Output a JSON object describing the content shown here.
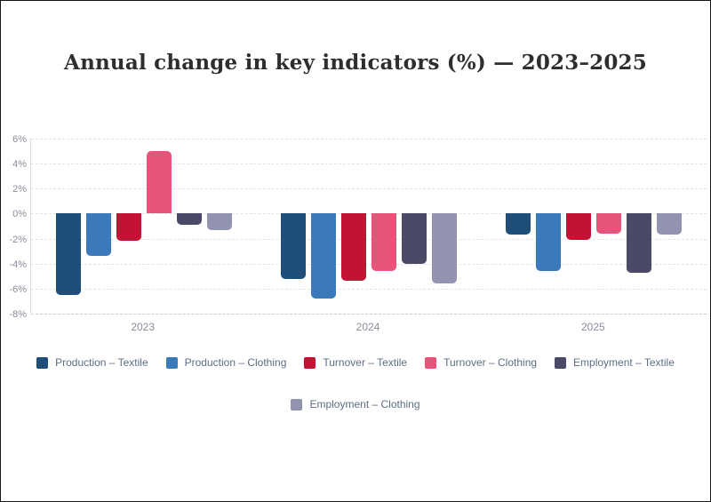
{
  "page": {
    "title": "Annual change in key indicators (%) — 2023–2025"
  },
  "chart_data": {
    "type": "bar",
    "title": "Annual change in key indicators (%) — 2023–2025",
    "categories": [
      "2023",
      "2024",
      "2025"
    ],
    "series": [
      {
        "name": "Production – Textile",
        "color": "#1f4e79",
        "values": [
          -6.5,
          -5.2,
          -1.7
        ]
      },
      {
        "name": "Production – Clothing",
        "color": "#3c79bb",
        "values": [
          -3.4,
          -6.8,
          -4.6
        ]
      },
      {
        "name": "Turnover – Textile",
        "color": "#c41235",
        "values": [
          -2.2,
          -5.4,
          -2.1
        ]
      },
      {
        "name": "Turnover – Clothing",
        "color": "#e85379",
        "values": [
          5.0,
          -4.6,
          -1.6
        ]
      },
      {
        "name": "Employment – Textile",
        "color": "#4a4a67",
        "values": [
          -0.9,
          -4.0,
          -4.7
        ]
      },
      {
        "name": "Employment – Clothing",
        "color": "#9193af",
        "values": [
          -1.3,
          -5.6,
          -1.7
        ]
      }
    ],
    "xlabel": "",
    "ylabel": "",
    "ylim": [
      -8,
      6
    ],
    "ytick_step": 2,
    "yticks": [
      "6%",
      "4%",
      "2%",
      "0%",
      "-2%",
      "-4%",
      "-6%",
      "-8%"
    ],
    "grid": true,
    "gridline_style": "dashed",
    "legend_position": "bottom",
    "background": "#ffffff"
  }
}
